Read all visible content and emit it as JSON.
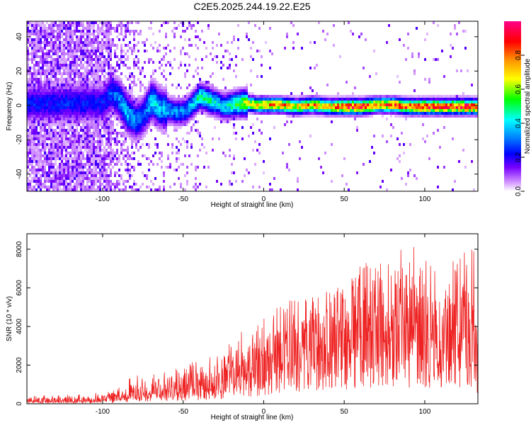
{
  "title": "C2E5.2025.244.19.22.E25",
  "chart_data": [
    {
      "type": "heatmap",
      "title": "C2E5.2025.244.19.22.E25",
      "xlabel": "Height of straight line (km)",
      "ylabel": "Frequency (Hz)",
      "xlim": [
        -147,
        133
      ],
      "ylim": [
        -50,
        49
      ],
      "xticks": [
        -100,
        -50,
        0,
        50,
        100
      ],
      "yticks": [
        -40,
        -20,
        0,
        20,
        40
      ],
      "xtick_labels": [
        "-100",
        "-50",
        "0",
        "50",
        "100"
      ],
      "ytick_labels": [
        "-40",
        "-20",
        "0",
        "20",
        "40"
      ],
      "colorbar": {
        "label": "Normalized spectral amplitude",
        "range": [
          0,
          1
        ],
        "ticks": [
          0.0,
          0.2,
          0.4,
          0.6,
          0.8
        ],
        "tick_labels": [
          "0.0",
          "0.2",
          "0.4",
          "0.6",
          "0.8"
        ],
        "colormap": [
          "#ffffff",
          "#6600ff",
          "#0000ff",
          "#00ffff",
          "#00ff00",
          "#ffff00",
          "#ff8000",
          "#ff0000",
          "#ff0080"
        ]
      },
      "ridge": {
        "description": "dominant frequency band",
        "x": [
          -100,
          -95,
          -90,
          -85,
          -80,
          -75,
          -70,
          -65,
          -60,
          -55,
          -50,
          -45,
          -40,
          -35,
          -30,
          -25,
          -20,
          -15,
          -10,
          -5,
          0,
          10,
          20,
          30,
          40,
          50,
          60,
          70,
          80,
          90,
          100,
          110,
          120,
          130
        ],
        "y": [
          2,
          8,
          4,
          -4,
          -8,
          -5,
          4,
          -1,
          -2,
          -3,
          -3,
          1,
          6,
          4,
          2,
          0,
          1,
          2,
          2,
          1,
          1,
          1,
          0,
          1,
          0,
          0,
          0,
          1,
          1,
          0,
          0,
          0,
          0,
          0
        ],
        "amplitude": [
          0.25,
          0.3,
          0.35,
          0.4,
          0.35,
          0.3,
          0.45,
          0.4,
          0.4,
          0.35,
          0.35,
          0.4,
          0.5,
          0.5,
          0.45,
          0.4,
          0.5,
          0.6,
          0.7,
          0.75,
          0.8,
          0.85,
          0.75,
          0.85,
          0.8,
          0.95,
          0.95,
          0.85,
          0.9,
          0.9,
          0.95,
          0.95,
          0.98,
          1.0
        ]
      }
    },
    {
      "type": "line",
      "xlabel": "Height of straight line (km)",
      "ylabel": "SNR (10 * v/v)",
      "xlim": [
        -147,
        133
      ],
      "ylim": [
        0,
        8800
      ],
      "xticks": [
        -100,
        -50,
        0,
        50,
        100
      ],
      "yticks": [
        0,
        2000,
        4000,
        6000,
        8000
      ],
      "xtick_labels": [
        "-100",
        "-50",
        "0",
        "50",
        "100"
      ],
      "ytick_labels": [
        "0",
        "2000",
        "4000",
        "6000",
        "8000"
      ],
      "line_color": "#ee2222",
      "envelope": {
        "description": "approximate upper envelope of the noisy SNR trace",
        "x": [
          -147,
          -130,
          -110,
          -100,
          -90,
          -80,
          -70,
          -60,
          -50,
          -40,
          -30,
          -20,
          -10,
          0,
          10,
          20,
          30,
          40,
          50,
          60,
          70,
          80,
          90,
          100,
          110,
          120,
          125,
          130,
          133
        ],
        "y": [
          450,
          450,
          500,
          600,
          900,
          1500,
          1700,
          1800,
          2000,
          2500,
          2600,
          3300,
          4000,
          4500,
          5200,
          5500,
          5800,
          6000,
          6500,
          7200,
          7500,
          7800,
          8500,
          7600,
          7400,
          7500,
          8400,
          8600,
          4700
        ]
      },
      "mean": {
        "description": "approximate mean level of the noisy SNR trace",
        "x": [
          -147,
          -130,
          -110,
          -100,
          -90,
          -80,
          -70,
          -60,
          -50,
          -40,
          -30,
          -20,
          -10,
          0,
          10,
          20,
          30,
          40,
          50,
          60,
          70,
          80,
          90,
          100,
          110,
          120,
          125,
          130,
          133
        ],
        "y": [
          150,
          150,
          180,
          220,
          320,
          500,
          650,
          700,
          800,
          950,
          1100,
          1400,
          1700,
          2000,
          2400,
          2700,
          3000,
          3200,
          3500,
          3800,
          3900,
          4000,
          4200,
          3800,
          3600,
          3700,
          4000,
          4300,
          2500
        ]
      }
    }
  ]
}
